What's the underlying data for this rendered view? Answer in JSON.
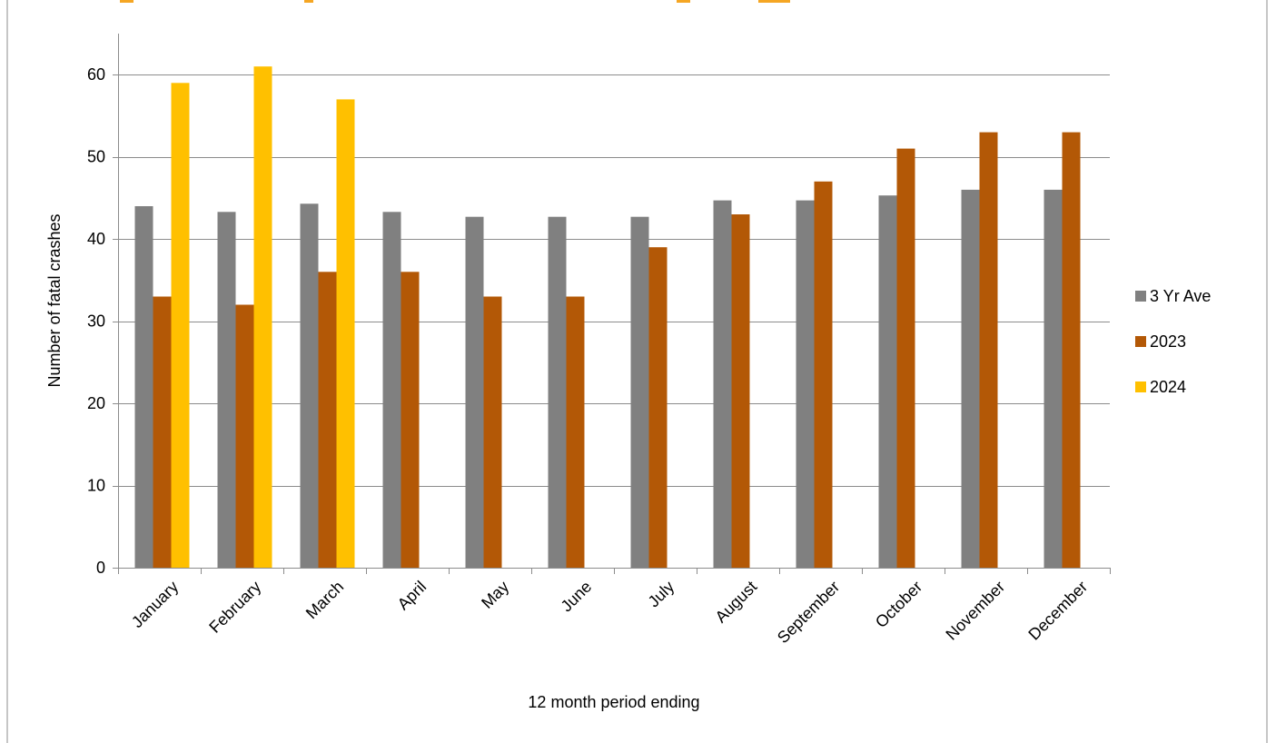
{
  "chart_data": {
    "type": "bar",
    "xlabel": "12 month period ending",
    "ylabel": "Number of fatal crashes",
    "ylim": [
      0,
      65
    ],
    "yticks": [
      0,
      10,
      20,
      30,
      40,
      50,
      60
    ],
    "grid": true,
    "legend_position": "right",
    "categories": [
      "January",
      "February",
      "March",
      "April",
      "May",
      "June",
      "July",
      "August",
      "September",
      "October",
      "November",
      "December"
    ],
    "series": [
      {
        "name": "3 Yr Ave",
        "color": "#808080",
        "values": [
          44,
          43.3,
          44.3,
          43.3,
          42.7,
          42.7,
          42.7,
          44.7,
          44.7,
          45.3,
          46,
          46
        ]
      },
      {
        "name": "2023",
        "color": "#b35806",
        "values": [
          33,
          32,
          36,
          36,
          33,
          33,
          39,
          43,
          47,
          51,
          53,
          53
        ]
      },
      {
        "name": "2024",
        "color": "#ffc000",
        "values": [
          59,
          61,
          57,
          null,
          null,
          null,
          null,
          null,
          null,
          null,
          null,
          null
        ]
      }
    ]
  }
}
